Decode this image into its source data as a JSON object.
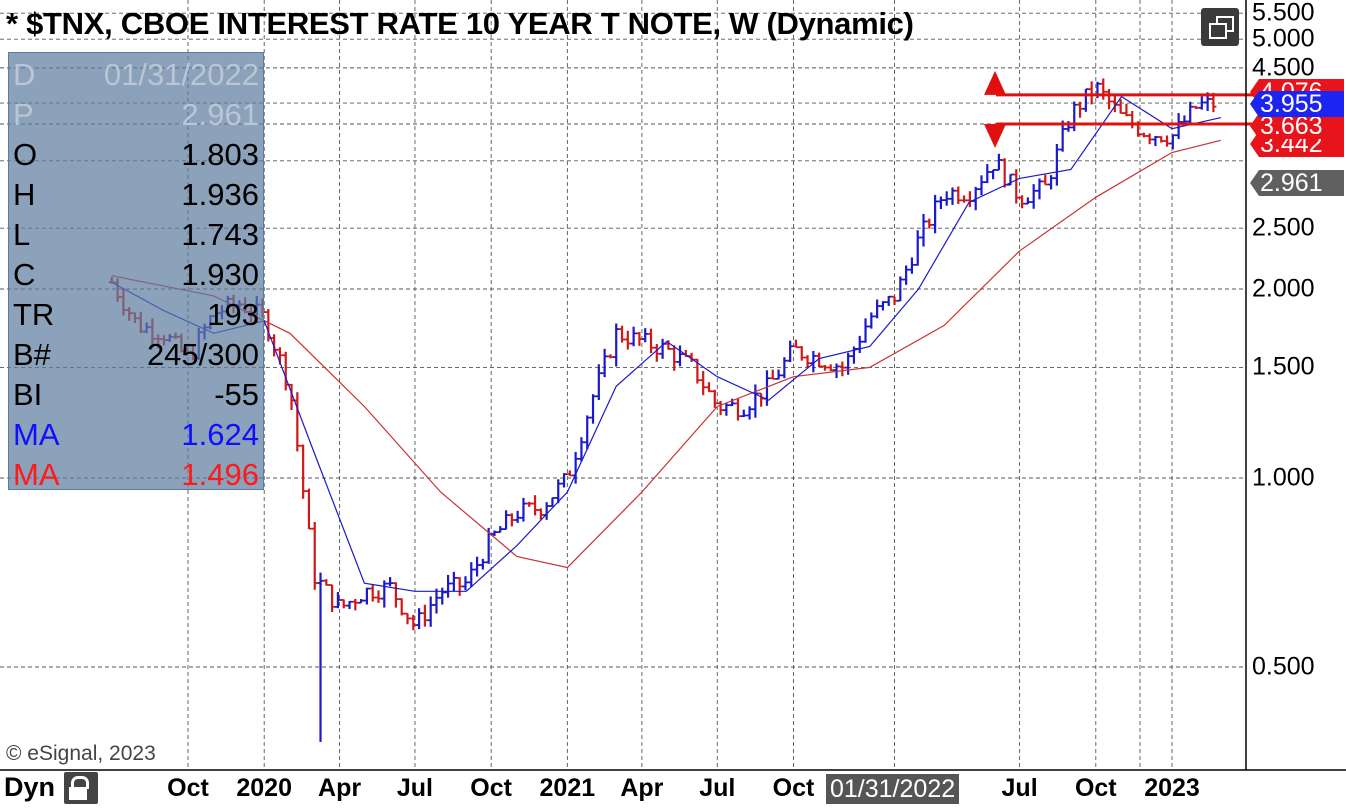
{
  "title": "* $TNX, CBOE INTEREST RATE 10 YEAR T NOTE, W (Dynamic)",
  "data_window": {
    "rows": [
      {
        "label": "D",
        "value": "01/31/2022",
        "style": "faded"
      },
      {
        "label": "P",
        "value": "2.961",
        "style": "faded"
      },
      {
        "label": "O",
        "value": "1.803",
        "style": "black"
      },
      {
        "label": "H",
        "value": "1.936",
        "style": "black"
      },
      {
        "label": "L",
        "value": "1.743",
        "style": "black"
      },
      {
        "label": "C",
        "value": "1.930",
        "style": "black"
      },
      {
        "label": "TR",
        "value": "193",
        "style": "black"
      },
      {
        "label": "B#",
        "value": "245/300",
        "style": "black"
      },
      {
        "label": "BI",
        "value": "-55",
        "style": "black"
      },
      {
        "label": "MA",
        "value": "1.624",
        "style": "blue"
      },
      {
        "label": "MA",
        "value": "1.496",
        "style": "red"
      }
    ]
  },
  "copyright": "© eSignal, 2023",
  "bottom_bar": {
    "mode_label": "Dyn",
    "cursor_date": "01/31/2022"
  },
  "price_tags": [
    {
      "value": "4.076",
      "color": "#e8141c"
    },
    {
      "value": "3.955",
      "color": "#1b24f0"
    },
    {
      "value": "3.663",
      "color": "#e8141c"
    },
    {
      "value": "3.442",
      "color": "#e8141c"
    },
    {
      "value": "2.961",
      "color": "#606060"
    }
  ],
  "colors": {
    "up_bar": "#1a1acc",
    "down_bar": "#d01818",
    "ma_fast": "#1a1acc",
    "ma_slow": "#c83232",
    "level_line": "#e01010"
  },
  "icons": [
    "restore-window-icon",
    "lock-icon",
    "triangle-up-marker-icon",
    "triangle-down-marker-icon"
  ],
  "chart_data": {
    "type": "bar",
    "title": "* $TNX, CBOE INTEREST RATE 10 YEAR T NOTE, W (Dynamic)",
    "y_scale": "log",
    "ylim": [
      0.35,
      5.8
    ],
    "grid": true,
    "y_ticks": [
      "5.500",
      "5.000",
      "4.500",
      "2.500",
      "2.000",
      "1.500",
      "1.000",
      "0.500"
    ],
    "y_tick_values": [
      5.5,
      5.0,
      4.5,
      2.5,
      2.0,
      1.5,
      1.0,
      0.5
    ],
    "x_ticks": [
      "Oct",
      "2020",
      "Apr",
      "Jul",
      "Oct",
      "2021",
      "Apr",
      "Jul",
      "Oct",
      "01/31/2022",
      "Jul",
      "Oct",
      "2023"
    ],
    "x_tick_dates": [
      "2019-10",
      "2020-01",
      "2020-04",
      "2020-07",
      "2020-10",
      "2021-01",
      "2021-04",
      "2021-07",
      "2021-10",
      "2022-01-31",
      "2022-07",
      "2022-10",
      "2023-01"
    ],
    "horizontal_levels": [
      4.076,
      3.663
    ],
    "level_markers": [
      {
        "value": 4.076,
        "shape": "triangle-up"
      },
      {
        "value": 3.663,
        "shape": "triangle-down"
      }
    ],
    "close_path": [
      [
        "2019-07",
        2.05
      ],
      [
        "2019-08",
        1.75
      ],
      [
        "2019-09",
        1.7
      ],
      [
        "2019-10",
        1.55
      ],
      [
        "2019-11",
        1.83
      ],
      [
        "2019-12",
        1.9
      ],
      [
        "2020-01",
        1.8
      ],
      [
        "2020-02",
        1.4
      ],
      [
        "2020-03",
        0.7
      ],
      [
        "2020-04",
        0.62
      ],
      [
        "2020-05",
        0.66
      ],
      [
        "2020-06",
        0.67
      ],
      [
        "2020-07",
        0.58
      ],
      [
        "2020-08",
        0.66
      ],
      [
        "2020-09",
        0.68
      ],
      [
        "2020-10",
        0.8
      ],
      [
        "2020-11",
        0.88
      ],
      [
        "2020-12",
        0.9
      ],
      [
        "2021-01",
        1.0
      ],
      [
        "2021-02",
        1.35
      ],
      [
        "2021-03",
        1.7
      ],
      [
        "2021-04",
        1.65
      ],
      [
        "2021-05",
        1.6
      ],
      [
        "2021-06",
        1.5
      ],
      [
        "2021-07",
        1.3
      ],
      [
        "2021-08",
        1.3
      ],
      [
        "2021-09",
        1.4
      ],
      [
        "2021-10",
        1.6
      ],
      [
        "2021-11",
        1.55
      ],
      [
        "2021-12",
        1.5
      ],
      [
        "2022-01",
        1.8
      ],
      [
        "2022-02",
        1.95
      ],
      [
        "2022-03",
        2.4
      ],
      [
        "2022-04",
        2.85
      ],
      [
        "2022-05",
        2.85
      ],
      [
        "2022-06",
        3.2
      ],
      [
        "2022-07",
        2.8
      ],
      [
        "2022-08",
        2.9
      ],
      [
        "2022-09",
        3.8
      ],
      [
        "2022-10",
        4.2
      ],
      [
        "2022-11",
        3.75
      ],
      [
        "2022-12",
        3.55
      ],
      [
        "2023-01",
        3.5
      ],
      [
        "2023-02",
        3.92
      ],
      [
        "2023-03",
        3.955
      ]
    ],
    "ma_fast_path": [
      [
        "2019-07",
        2.05
      ],
      [
        "2019-09",
        1.85
      ],
      [
        "2019-11",
        1.7
      ],
      [
        "2020-01",
        1.78
      ],
      [
        "2020-03",
        1.1
      ],
      [
        "2020-05",
        0.68
      ],
      [
        "2020-07",
        0.66
      ],
      [
        "2020-09",
        0.66
      ],
      [
        "2020-11",
        0.78
      ],
      [
        "2021-01",
        0.95
      ],
      [
        "2021-03",
        1.4
      ],
      [
        "2021-05",
        1.65
      ],
      [
        "2021-07",
        1.45
      ],
      [
        "2021-09",
        1.33
      ],
      [
        "2021-11",
        1.55
      ],
      [
        "2022-01",
        1.62
      ],
      [
        "2022-03",
        2.0
      ],
      [
        "2022-05",
        2.75
      ],
      [
        "2022-07",
        3.0
      ],
      [
        "2022-09",
        3.1
      ],
      [
        "2022-11",
        4.05
      ],
      [
        "2023-01",
        3.6
      ],
      [
        "2023-03",
        3.75
      ]
    ],
    "ma_slow_path": [
      [
        "2019-07",
        2.1
      ],
      [
        "2019-11",
        1.95
      ],
      [
        "2020-02",
        1.7
      ],
      [
        "2020-05",
        1.3
      ],
      [
        "2020-08",
        0.95
      ],
      [
        "2020-11",
        0.75
      ],
      [
        "2021-01",
        0.72
      ],
      [
        "2021-04",
        0.95
      ],
      [
        "2021-07",
        1.3
      ],
      [
        "2021-10",
        1.45
      ],
      [
        "2022-01",
        1.5
      ],
      [
        "2022-04",
        1.75
      ],
      [
        "2022-07",
        2.3
      ],
      [
        "2022-10",
        2.8
      ],
      [
        "2023-01",
        3.3
      ],
      [
        "2023-03",
        3.45
      ]
    ],
    "last_values": {
      "close": 3.955,
      "high_level": 4.076,
      "low_level": 3.663,
      "ma_slow": 3.442,
      "cursor_price": 2.961
    },
    "cursor_bar": {
      "date": "01/31/2022",
      "open": 1.803,
      "high": 1.936,
      "low": 1.743,
      "close": 1.93
    }
  }
}
